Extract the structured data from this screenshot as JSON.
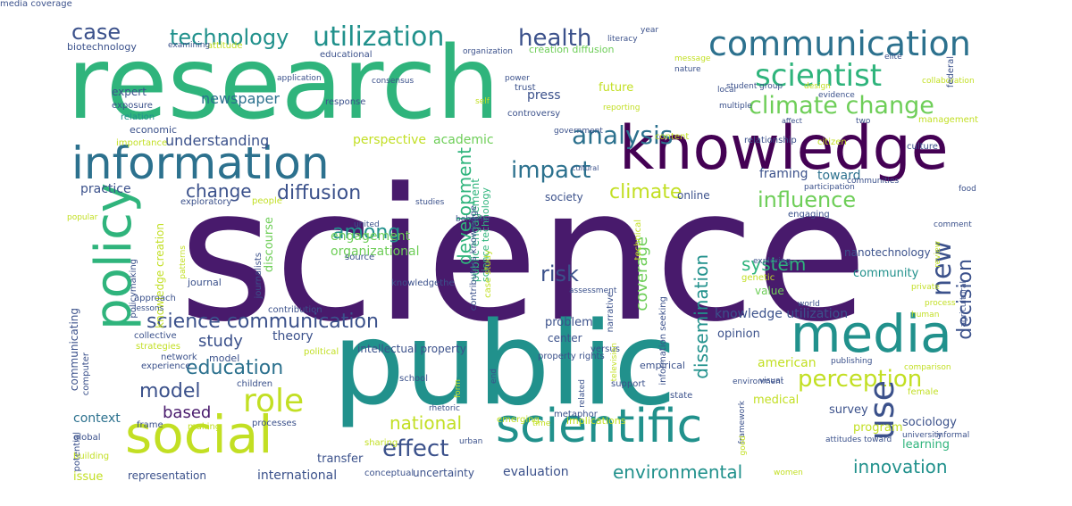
{
  "palette": {
    "purple": "#481a6c",
    "indigo": "#3b518b",
    "blue": "#2c718e",
    "teal": "#21918c",
    "green": "#2fb47c",
    "lime": "#6ece58",
    "yellow": "#c2df23"
  },
  "words": [
    {
      "text": "science",
      "color": "#481a6c"
    },
    {
      "text": "research",
      "color": "#2fb47c"
    },
    {
      "text": "public",
      "color": "#21918c"
    },
    {
      "text": "knowledge",
      "color": "#440154"
    },
    {
      "text": "information",
      "color": "#2c718e"
    },
    {
      "text": "media",
      "color": "#21918c"
    },
    {
      "text": "social",
      "color": "#c2df23"
    },
    {
      "text": "scientific",
      "color": "#21918c"
    },
    {
      "text": "policy",
      "color": "#2fb47c"
    },
    {
      "text": "communication",
      "color": "#2c718e"
    },
    {
      "text": "scientist",
      "color": "#2fb47c"
    },
    {
      "text": "utilization",
      "color": "#21918c"
    },
    {
      "text": "technology",
      "color": "#21918c"
    },
    {
      "text": "health",
      "color": "#3b518b"
    },
    {
      "text": "case",
      "color": "#3b518b"
    },
    {
      "text": "climate change",
      "color": "#6ece58"
    },
    {
      "text": "analysis",
      "color": "#2c718e"
    },
    {
      "text": "impact",
      "color": "#2c718e"
    },
    {
      "text": "new",
      "color": "#3b518b"
    },
    {
      "text": "influence",
      "color": "#6ece58"
    },
    {
      "text": "climate",
      "color": "#c2df23"
    },
    {
      "text": "diffusion",
      "color": "#3b518b"
    },
    {
      "text": "change",
      "color": "#3b518b"
    },
    {
      "text": "among",
      "color": "#21918c"
    },
    {
      "text": "science communication",
      "color": "#3b518b"
    },
    {
      "text": "role",
      "color": "#c2df23"
    },
    {
      "text": "education",
      "color": "#2c718e"
    },
    {
      "text": "model",
      "color": "#3b518b"
    },
    {
      "text": "based",
      "color": "#481a6c"
    },
    {
      "text": "perception",
      "color": "#c2df23"
    },
    {
      "text": "system",
      "color": "#2fb47c"
    },
    {
      "text": "risk",
      "color": "#3b518b"
    },
    {
      "text": "study",
      "color": "#3b518b"
    },
    {
      "text": "effect",
      "color": "#3b518b"
    },
    {
      "text": "national",
      "color": "#c2df23"
    },
    {
      "text": "innovation",
      "color": "#21918c"
    },
    {
      "text": "environmental",
      "color": "#21918c"
    },
    {
      "text": "use",
      "color": "#3b518b"
    },
    {
      "text": "decision",
      "color": "#3b518b"
    },
    {
      "text": "dissemination",
      "color": "#21918c"
    },
    {
      "text": "development",
      "color": "#2fb47c"
    },
    {
      "text": "coverage",
      "color": "#6ece58"
    },
    {
      "text": "understanding",
      "color": "#3b518b"
    },
    {
      "text": "practice",
      "color": "#3b518b"
    },
    {
      "text": "newspaper",
      "color": "#2c718e"
    },
    {
      "text": "perspective",
      "color": "#c2df23"
    },
    {
      "text": "academic",
      "color": "#6ece58"
    },
    {
      "text": "engagement",
      "color": "#6ece58"
    },
    {
      "text": "organizational",
      "color": "#6ece58"
    },
    {
      "text": "framing",
      "color": "#3b518b"
    },
    {
      "text": "toward",
      "color": "#2c718e"
    },
    {
      "text": "community",
      "color": "#21918c"
    },
    {
      "text": "knowledge utilization",
      "color": "#3b518b"
    },
    {
      "text": "theory",
      "color": "#3b518b"
    },
    {
      "text": "context",
      "color": "#2c718e"
    },
    {
      "text": "communicating",
      "color": "#3b518b"
    },
    {
      "text": "survey",
      "color": "#3b518b"
    },
    {
      "text": "program",
      "color": "#c2df23"
    },
    {
      "text": "medical",
      "color": "#c2df23"
    },
    {
      "text": "sociology",
      "color": "#3b518b"
    },
    {
      "text": "learning",
      "color": "#2fb47c"
    },
    {
      "text": "evaluation",
      "color": "#3b518b"
    },
    {
      "text": "international",
      "color": "#3b518b"
    },
    {
      "text": "representation",
      "color": "#3b518b"
    },
    {
      "text": "issue",
      "color": "#c2df23"
    },
    {
      "text": "transfer",
      "color": "#3b518b"
    },
    {
      "text": "uncertainty",
      "color": "#3b518b"
    },
    {
      "text": "american",
      "color": "#c2df23"
    },
    {
      "text": "expert",
      "color": "#3b518b"
    },
    {
      "text": "biotechnology",
      "color": "#3b518b"
    },
    {
      "text": "future",
      "color": "#c2df23"
    },
    {
      "text": "press",
      "color": "#3b518b"
    },
    {
      "text": "creation diffusion",
      "color": "#6ece58"
    },
    {
      "text": "nanotechnology",
      "color": "#3b518b"
    },
    {
      "text": "society",
      "color": "#3b518b"
    },
    {
      "text": "online",
      "color": "#3b518b"
    },
    {
      "text": "value",
      "color": "#6ece58"
    },
    {
      "text": "problem",
      "color": "#3b518b"
    },
    {
      "text": "opinion",
      "color": "#3b518b"
    },
    {
      "text": "center",
      "color": "#3b518b"
    },
    {
      "text": "model",
      "color": "#3b518b"
    },
    {
      "text": "journal",
      "color": "#3b518b"
    },
    {
      "text": "discourse",
      "color": "#6ece58"
    },
    {
      "text": "knowledge creation",
      "color": "#c2df23"
    },
    {
      "text": "public engagement",
      "color": "#2fb47c"
    },
    {
      "text": "science technology",
      "color": "#2fb47c"
    },
    {
      "text": "intellectual property",
      "color": "#3b518b"
    },
    {
      "text": "economic",
      "color": "#3b518b"
    },
    {
      "text": "exposure",
      "color": "#3b518b"
    },
    {
      "text": "relation",
      "color": "#21918c"
    },
    {
      "text": "importance",
      "color": "#c2df23"
    },
    {
      "text": "approach",
      "color": "#3b518b"
    },
    {
      "text": "policymaking",
      "color": "#3b518b"
    },
    {
      "text": "lessons",
      "color": "#3b518b"
    },
    {
      "text": "contribution",
      "color": "#3b518b"
    },
    {
      "text": "collective",
      "color": "#3b518b"
    },
    {
      "text": "strategies",
      "color": "#c2df23"
    },
    {
      "text": "network",
      "color": "#3b518b"
    },
    {
      "text": "experience",
      "color": "#3b518b"
    },
    {
      "text": "computer",
      "color": "#3b518b"
    },
    {
      "text": "children",
      "color": "#3b518b"
    },
    {
      "text": "school",
      "color": "#3b518b"
    },
    {
      "text": "political",
      "color": "#c2df23"
    },
    {
      "text": "frame",
      "color": "#3b518b"
    },
    {
      "text": "making",
      "color": "#c2df23"
    },
    {
      "text": "processes",
      "color": "#3b518b"
    },
    {
      "text": "global",
      "color": "#3b518b"
    },
    {
      "text": "potential",
      "color": "#3b518b"
    },
    {
      "text": "building",
      "color": "#c2df23"
    },
    {
      "text": "sharing",
      "color": "#c2df23"
    },
    {
      "text": "conceptual",
      "color": "#3b518b"
    },
    {
      "text": "implications",
      "color": "#c2df23"
    },
    {
      "text": "metaphor",
      "color": "#3b518b"
    },
    {
      "text": "emerging",
      "color": "#c2df23"
    },
    {
      "text": "support",
      "color": "#3b518b"
    },
    {
      "text": "state",
      "color": "#3b518b"
    },
    {
      "text": "empirical",
      "color": "#3b518b"
    },
    {
      "text": "versus",
      "color": "#3b518b"
    },
    {
      "text": "property rights",
      "color": "#3b518b"
    },
    {
      "text": "information seeking",
      "color": "#3b518b"
    },
    {
      "text": "narrative",
      "color": "#3b518b"
    },
    {
      "text": "technical",
      "color": "#c2df23"
    },
    {
      "text": "case study",
      "color": "#c2df23"
    },
    {
      "text": "contributors knowledge",
      "color": "#3b518b"
    },
    {
      "text": "knowledgethe",
      "color": "#3b518b"
    },
    {
      "text": "united",
      "color": "#3b518b"
    },
    {
      "text": "studies",
      "color": "#3b518b"
    },
    {
      "text": "source",
      "color": "#3b518b"
    },
    {
      "text": "journalists",
      "color": "#3b518b"
    },
    {
      "text": "people",
      "color": "#c2df23"
    },
    {
      "text": "patterns",
      "color": "#c2df23"
    },
    {
      "text": "popular",
      "color": "#c2df23"
    },
    {
      "text": "exploratory",
      "color": "#3b518b"
    },
    {
      "text": "attitude",
      "color": "#c2df23"
    },
    {
      "text": "examining",
      "color": "#3b518b"
    },
    {
      "text": "educational",
      "color": "#3b518b"
    },
    {
      "text": "application",
      "color": "#3b518b"
    },
    {
      "text": "consensus",
      "color": "#3b518b"
    },
    {
      "text": "response",
      "color": "#3b518b"
    },
    {
      "text": "self",
      "color": "#c2df23"
    },
    {
      "text": "organization",
      "color": "#3b518b"
    },
    {
      "text": "power",
      "color": "#3b518b"
    },
    {
      "text": "trust",
      "color": "#3b518b"
    },
    {
      "text": "controversy",
      "color": "#3b518b"
    },
    {
      "text": "reporting",
      "color": "#c2df23"
    },
    {
      "text": "government",
      "color": "#3b518b"
    },
    {
      "text": "year",
      "color": "#3b518b"
    },
    {
      "text": "literacy",
      "color": "#3b518b"
    },
    {
      "text": "message",
      "color": "#c2df23"
    },
    {
      "text": "nature",
      "color": "#3b518b"
    },
    {
      "text": "group",
      "color": "#3b518b"
    },
    {
      "text": "design",
      "color": "#c2df23"
    },
    {
      "text": "student",
      "color": "#3b518b"
    },
    {
      "text": "local",
      "color": "#3b518b"
    },
    {
      "text": "multiple",
      "color": "#3b518b"
    },
    {
      "text": "elite",
      "color": "#3b518b"
    },
    {
      "text": "collaboration",
      "color": "#c2df23"
    },
    {
      "text": "evidence",
      "color": "#3b518b"
    },
    {
      "text": "management",
      "color": "#c2df23"
    },
    {
      "text": "federal",
      "color": "#3b518b"
    },
    {
      "text": "two",
      "color": "#3b518b"
    },
    {
      "text": "affect",
      "color": "#3b518b"
    },
    {
      "text": "content",
      "color": "#c2df23"
    },
    {
      "text": "relationship",
      "color": "#3b518b"
    },
    {
      "text": "citizen",
      "color": "#c2df23"
    },
    {
      "text": "culture",
      "color": "#3b518b"
    },
    {
      "text": "behavior",
      "color": "#3b518b"
    },
    {
      "text": "cultural",
      "color": "#3b518b"
    },
    {
      "text": "communities",
      "color": "#3b518b"
    },
    {
      "text": "participation",
      "color": "#3b518b"
    },
    {
      "text": "comment",
      "color": "#3b518b"
    },
    {
      "text": "engaging",
      "color": "#3b518b"
    },
    {
      "text": "food",
      "color": "#3b518b"
    },
    {
      "text": "review",
      "color": "#c2df23"
    },
    {
      "text": "exploring",
      "color": "#3b518b"
    },
    {
      "text": "genetic",
      "color": "#c2df23"
    },
    {
      "text": "agricultural",
      "color": "#3b518b"
    },
    {
      "text": "assessment",
      "color": "#3b518b"
    },
    {
      "text": "private",
      "color": "#c2df23"
    },
    {
      "text": "process",
      "color": "#c2df23"
    },
    {
      "text": "world",
      "color": "#3b518b"
    },
    {
      "text": "human",
      "color": "#c2df23"
    },
    {
      "text": "publishing",
      "color": "#3b518b"
    },
    {
      "text": "comparison",
      "color": "#c2df23"
    },
    {
      "text": "environment",
      "color": "#3b518b"
    },
    {
      "text": "visual",
      "color": "#3b518b"
    },
    {
      "text": "framework",
      "color": "#3b518b"
    },
    {
      "text": "female",
      "color": "#c2df23"
    },
    {
      "text": "attitudes toward",
      "color": "#3b518b"
    },
    {
      "text": "university",
      "color": "#3b518b"
    },
    {
      "text": "informal",
      "color": "#3b518b"
    },
    {
      "text": "good",
      "color": "#c2df23"
    },
    {
      "text": "women",
      "color": "#c2df23"
    },
    {
      "text": "television",
      "color": "#c2df23"
    },
    {
      "text": "related",
      "color": "#3b518b"
    },
    {
      "text": "time",
      "color": "#c2df23"
    },
    {
      "text": "form",
      "color": "#c2df23"
    },
    {
      "text": "rhetoric",
      "color": "#3b518b"
    },
    {
      "text": "urban",
      "color": "#3b518b"
    },
    {
      "text": "end",
      "color": "#3b518b"
    },
    {
      "text": "media coverage",
      "color": "#3b518b"
    }
  ]
}
